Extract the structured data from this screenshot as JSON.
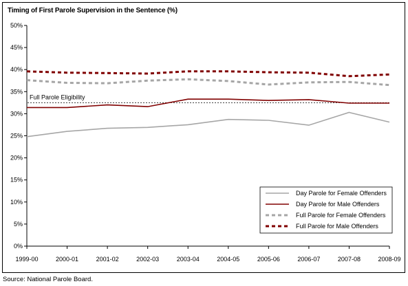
{
  "chart_data": {
    "type": "line",
    "title": "Timing of First Parole Supervision in the Sentence (%)",
    "source": "Source: National Parole Board.",
    "categories": [
      "1999-00",
      "2000-01",
      "2001-02",
      "2002-03",
      "2003-04",
      "2004-05",
      "2005-06",
      "2006-07",
      "2007-08",
      "2008-09"
    ],
    "ylim": [
      0,
      50
    ],
    "yticks": [
      "0%",
      "5%",
      "10%",
      "15%",
      "20%",
      "25%",
      "30%",
      "35%",
      "40%",
      "45%",
      "50%"
    ],
    "grid": false,
    "legend_position": "bottom-right",
    "reference_line": {
      "label": "Full Parole Eligibility",
      "value": 32.5,
      "color": "#000000"
    },
    "series": [
      {
        "name": "Day Parole for Female Offenders",
        "color": "#a6a6a6",
        "style": "solid",
        "values": [
          24.8,
          26.0,
          26.7,
          26.9,
          27.5,
          28.7,
          28.5,
          27.4,
          30.3,
          28.1
        ]
      },
      {
        "name": "Day Parole for Male Offenders",
        "color": "#800000",
        "style": "solid",
        "values": [
          31.4,
          31.4,
          32.0,
          31.6,
          33.3,
          33.3,
          33.0,
          33.2,
          32.4,
          32.4
        ]
      },
      {
        "name": "Full Parole for Female Offenders",
        "color": "#a6a6a6",
        "style": "dashed",
        "values": [
          37.6,
          37.0,
          36.9,
          37.5,
          37.8,
          37.4,
          36.6,
          37.1,
          37.2,
          36.5
        ]
      },
      {
        "name": "Full Parole for Male Offenders",
        "color": "#800000",
        "style": "dashed",
        "values": [
          39.6,
          39.3,
          39.2,
          39.1,
          39.6,
          39.6,
          39.4,
          39.3,
          38.5,
          38.9
        ]
      }
    ]
  }
}
